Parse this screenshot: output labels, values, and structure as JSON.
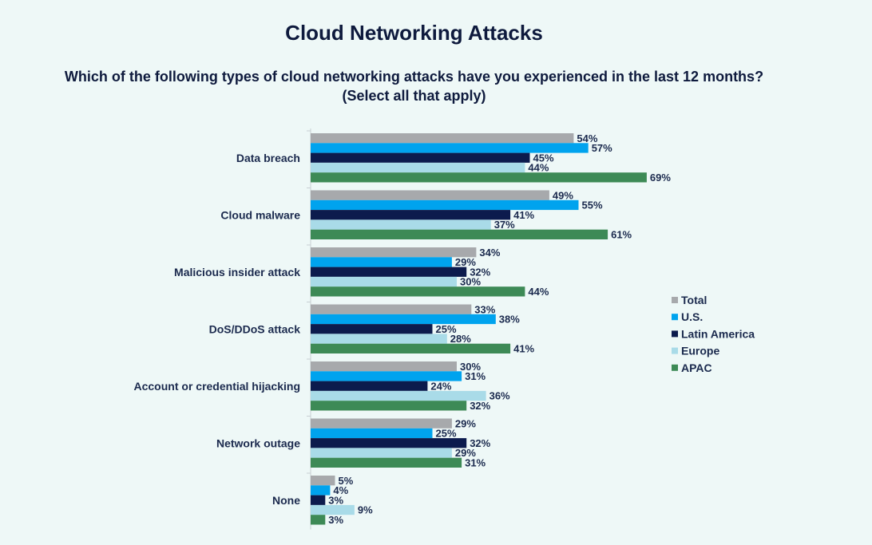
{
  "chart_data": {
    "type": "bar",
    "orientation": "horizontal",
    "title": "Cloud Networking Attacks",
    "subtitle_lines": [
      "Which of the following types of cloud networking attacks have you experienced in the last 12 months?",
      "(Select all that apply)"
    ],
    "categories": [
      "Data breach",
      "Cloud malware",
      "Malicious insider attack",
      "DoS/DDoS attack",
      "Account or credential hijacking",
      "Network outage",
      "None"
    ],
    "series": [
      {
        "name": "Total",
        "color": "#a7a9ac",
        "values": [
          54,
          49,
          34,
          33,
          30,
          29,
          5
        ]
      },
      {
        "name": "U.S.",
        "color": "#00a3ee",
        "values": [
          57,
          55,
          29,
          38,
          31,
          25,
          4
        ]
      },
      {
        "name": "Latin America",
        "color": "#0c1b4d",
        "values": [
          45,
          41,
          32,
          25,
          24,
          32,
          3
        ]
      },
      {
        "name": "Europe",
        "color": "#a9dbe8",
        "values": [
          44,
          37,
          30,
          28,
          36,
          29,
          9
        ]
      },
      {
        "name": "APAC",
        "color": "#3d8a56",
        "values": [
          69,
          61,
          44,
          41,
          32,
          31,
          3
        ]
      }
    ],
    "value_suffix": "%",
    "xlim": [
      0,
      100
    ],
    "grid": false,
    "legend_position": "right"
  }
}
